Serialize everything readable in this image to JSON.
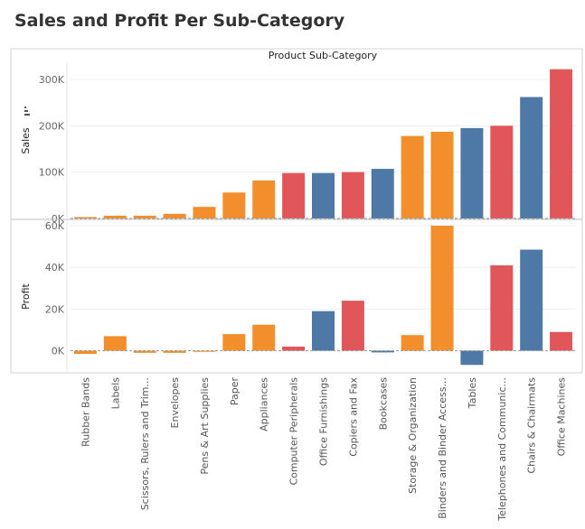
{
  "title": "Sales and Profit Per Sub-Category",
  "chart_data": {
    "type": "bar",
    "header": "Product Sub-Category",
    "categories": [
      "Rubber Bands",
      "Labels",
      "Scissors, Rulers and Trim...",
      "Envelopes",
      "Pens & Art Supplies",
      "Paper",
      "Appliances",
      "Computer Peripherals",
      "Office Furnishings",
      "Copiers and Fax",
      "Bookcases",
      "Storage & Organization",
      "Binders and Binder Access...",
      "Tables",
      "Telephones and Communic...",
      "Chairs & Chairmats",
      "Office Machines"
    ],
    "bar_colors": [
      "#f28e2b",
      "#f28e2b",
      "#f28e2b",
      "#f28e2b",
      "#f28e2b",
      "#f28e2b",
      "#f28e2b",
      "#e15759",
      "#4e79a7",
      "#e15759",
      "#4e79a7",
      "#f28e2b",
      "#f28e2b",
      "#4e79a7",
      "#e15759",
      "#4e79a7",
      "#e15759"
    ],
    "panels": [
      {
        "ylabel": "Sales",
        "ylim": [
          0,
          335000
        ],
        "ticks": [
          0,
          100000,
          200000,
          300000
        ],
        "tick_labels": [
          "0K",
          "100K",
          "200K",
          "300K"
        ],
        "values": [
          3000,
          6000,
          6000,
          10000,
          25000,
          56000,
          82000,
          98000,
          98000,
          100000,
          107000,
          178000,
          187000,
          195000,
          200000,
          262000,
          322000
        ]
      },
      {
        "ylabel": "Profit",
        "ylim": [
          -8000,
          60000
        ],
        "ticks": [
          0,
          20000,
          40000,
          60000
        ],
        "tick_labels": [
          "0K",
          "20K",
          "40K",
          "60K"
        ],
        "values": [
          -1500,
          7000,
          -1000,
          -1000,
          -500,
          8000,
          12500,
          2000,
          19000,
          24000,
          -800,
          7500,
          60000,
          -6800,
          41000,
          48500,
          9000
        ]
      }
    ]
  }
}
